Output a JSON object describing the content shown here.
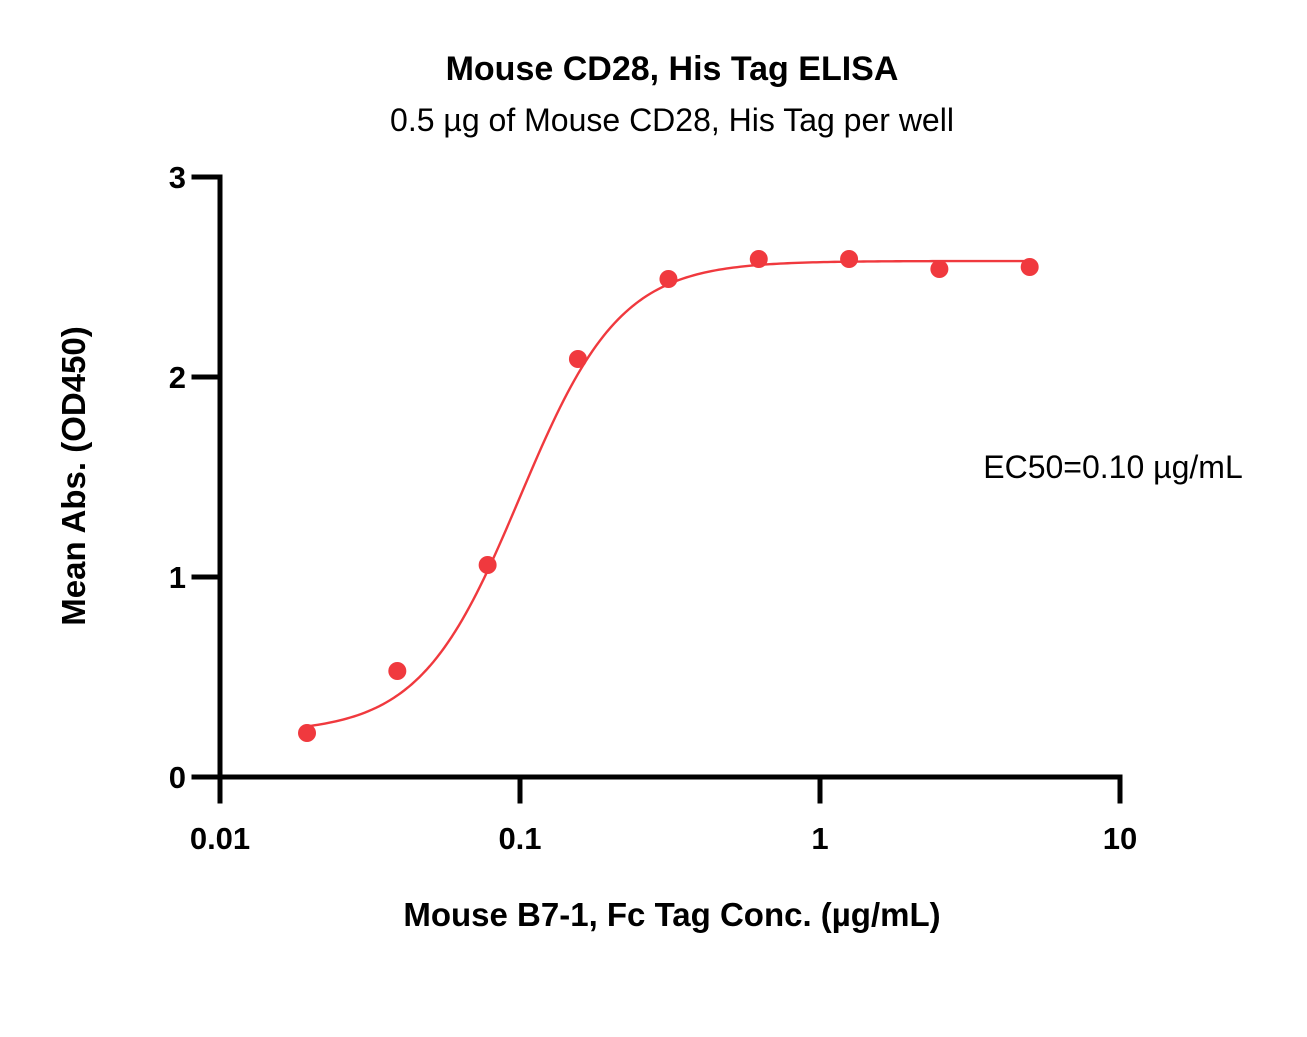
{
  "chart_data": {
    "type": "scatter",
    "title": "Mouse CD28, His Tag ELISA",
    "subtitle": "0.5 µg of Mouse CD28, His Tag per well",
    "xlabel": "Mouse B7-1, Fc Tag Conc. (µg/mL)",
    "ylabel": "Mean Abs. (OD450)",
    "xscale": "log",
    "xlim": [
      0.01,
      10
    ],
    "ylim": [
      0,
      3
    ],
    "xticks": [
      0.01,
      0.1,
      1,
      10
    ],
    "xtick_labels": [
      "0.01",
      "0.1",
      "1",
      "10"
    ],
    "yticks": [
      0,
      1,
      2,
      3
    ],
    "ytick_labels": [
      "0",
      "1",
      "2",
      "3"
    ],
    "grid": false,
    "annotation": "EC50=0.10 µg/mL",
    "series": [
      {
        "x": [
          0.0195,
          0.039,
          0.078,
          0.156,
          0.3125,
          0.625,
          1.25,
          2.5,
          5.0
        ],
        "y": [
          0.22,
          0.53,
          1.06,
          2.09,
          2.49,
          2.59,
          2.59,
          2.54,
          2.55
        ],
        "color": "#f0393e",
        "fit": {
          "model": "4PL",
          "bottom": 0.22,
          "top": 2.58,
          "ec50": 0.1,
          "hill": 2.6,
          "x_range": [
            0.0195,
            5.0
          ]
        }
      }
    ]
  }
}
